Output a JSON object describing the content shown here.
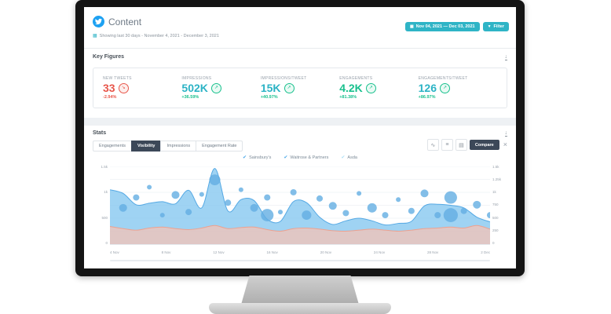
{
  "header": {
    "title": "Content",
    "subtitle": "Showing last 30 days - November 4, 2021 - December 3, 2021",
    "date_range_label": "Nov 04, 2021 — Dec 03, 2021",
    "filter_label": "Filter"
  },
  "key_figures": {
    "title": "Key Figures",
    "metrics": [
      {
        "label": "NEW TWEETS",
        "value": "33",
        "delta": "-2.94%",
        "trend": "down"
      },
      {
        "label": "IMPRESSIONS",
        "value": "502K",
        "delta": "+36.59%",
        "trend": "up"
      },
      {
        "label": "IMPRESSIONS/TWEET",
        "value": "15K",
        "delta": "+40.97%",
        "trend": "up"
      },
      {
        "label": "ENGAGEMENTS",
        "value": "4.2K",
        "delta": "+81.38%",
        "trend": "up"
      },
      {
        "label": "ENGAGEMENTS/TWEET",
        "value": "126",
        "delta": "+86.97%",
        "trend": "up"
      }
    ]
  },
  "stats": {
    "title": "Stats",
    "tabs": [
      {
        "label": "Engagements",
        "active": false
      },
      {
        "label": "Visibility",
        "active": true
      },
      {
        "label": "Impressions",
        "active": false
      },
      {
        "label": "Engagement Rate",
        "active": false
      }
    ],
    "compare_label": "Compare",
    "legend": [
      {
        "label": "Sainsbury's",
        "color": "#4aa8e8"
      },
      {
        "label": "Waitrose & Partners",
        "color": "#4aa8e8"
      },
      {
        "label": "Asda",
        "color": "#aee0f7"
      }
    ]
  },
  "icons": {
    "calendar": "▦",
    "download": "↓",
    "filter": "▼",
    "check": "✔",
    "up": "↗",
    "down": "↘",
    "close": "×",
    "chart_line": "∿",
    "list": "≡",
    "grid": "▤"
  },
  "colors": {
    "accent_teal": "#2fb4c6",
    "green": "#18c08d",
    "red": "#e8564a",
    "navy": "#3c4858",
    "twitter_blue": "#1da1f2",
    "area_blue": "#7fc4ef",
    "area_pink": "#f6c3b5"
  },
  "chart_data": {
    "type": "area",
    "title": "Visibility",
    "x_ticks": [
      "4 Nov",
      "8 Nov",
      "12 Nov",
      "16 Nov",
      "20 Nov",
      "24 Nov",
      "28 Nov",
      "2 Dec"
    ],
    "ylim": [
      0,
      1500
    ],
    "y_ticks_left": [
      "1.5k",
      "1k",
      "500",
      "0"
    ],
    "y_ticks_right": [
      "1.5k",
      "1.25k",
      "1k",
      "750",
      "500",
      "250",
      "0"
    ],
    "grid": true,
    "legend_position": "top",
    "series": [
      {
        "name": "Sainsbury's",
        "type": "area",
        "color": "#7fc4ef",
        "line_color": "#55a9e4",
        "values": [
          1050,
          980,
          760,
          790,
          820,
          780,
          1040,
          700,
          1460,
          640,
          860,
          840,
          480,
          440,
          820,
          800,
          520,
          380,
          450,
          500,
          450,
          370,
          400,
          440,
          740,
          770,
          750,
          700,
          520,
          430
        ]
      },
      {
        "name": "Waitrose & Partners",
        "type": "area",
        "color": "#f6c3b5",
        "line_color": "#eda18f",
        "values": [
          340,
          300,
          270,
          310,
          330,
          300,
          280,
          310,
          360,
          300,
          320,
          330,
          280,
          250,
          300,
          310,
          290,
          260,
          250,
          270,
          290,
          270,
          250,
          270,
          300,
          310,
          330,
          310,
          360,
          290
        ]
      },
      {
        "name": "Asda",
        "type": "bubble",
        "color": "#63aee2",
        "points": [
          [
            1,
            700,
            5
          ],
          [
            2,
            900,
            4
          ],
          [
            3,
            1100,
            3
          ],
          [
            4,
            560,
            3
          ],
          [
            5,
            950,
            5
          ],
          [
            6,
            620,
            4
          ],
          [
            7,
            960,
            3
          ],
          [
            8,
            1240,
            7
          ],
          [
            9,
            800,
            4
          ],
          [
            10,
            1050,
            3
          ],
          [
            11,
            700,
            5
          ],
          [
            12,
            900,
            4
          ],
          [
            12,
            560,
            8
          ],
          [
            13,
            620,
            3
          ],
          [
            14,
            1000,
            4
          ],
          [
            15,
            560,
            6
          ],
          [
            16,
            880,
            4
          ],
          [
            17,
            740,
            5
          ],
          [
            18,
            600,
            4
          ],
          [
            19,
            980,
            3
          ],
          [
            20,
            700,
            6
          ],
          [
            21,
            560,
            4
          ],
          [
            22,
            860,
            3
          ],
          [
            23,
            640,
            4
          ],
          [
            24,
            980,
            5
          ],
          [
            25,
            560,
            4
          ],
          [
            26,
            900,
            8
          ],
          [
            26,
            560,
            9
          ],
          [
            27,
            640,
            4
          ],
          [
            28,
            760,
            5
          ],
          [
            29,
            560,
            4
          ]
        ]
      }
    ]
  }
}
